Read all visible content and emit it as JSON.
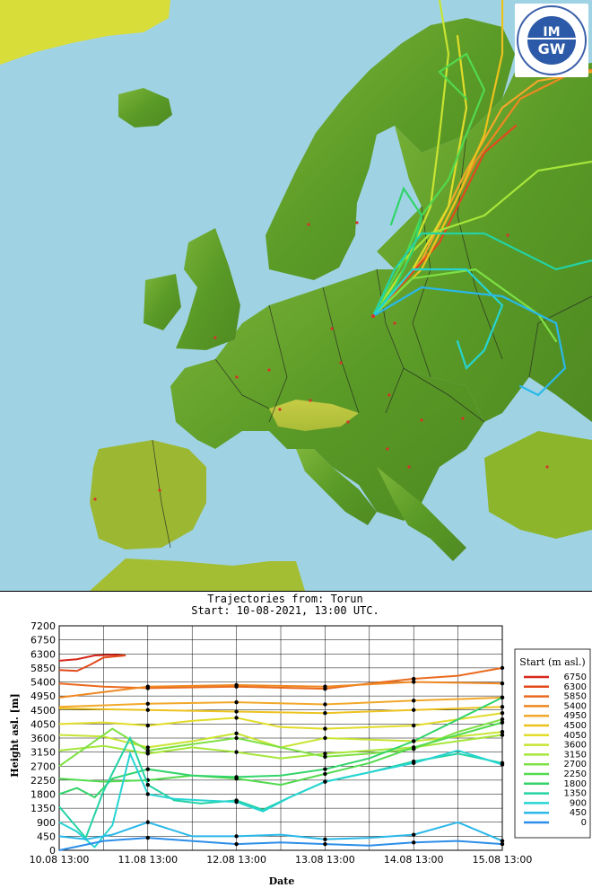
{
  "logo": {
    "text": "IMGW",
    "ring_text": "INSTYTUT METEOROLOGII I GOSPODARKI WODNEJ · PAŃSTWOWY INSTYTUT BADAWCZY"
  },
  "map": {
    "land_color": "#5f9e2a",
    "sea_color": "#9fd3e4",
    "origin_city": "Torun",
    "station_color": "#d8322a"
  },
  "chart_title_line1": "Trajectories from: Torun",
  "chart_title_line2": "Start: 10-08-2021, 13:00 UTC.",
  "chart_data": {
    "type": "line",
    "xlabel": "Date",
    "ylabel": "Height asl. [m]",
    "ylim": [
      0,
      7200
    ],
    "y_ticks": [
      "0",
      "450",
      "900",
      "1350",
      "1800",
      "2250",
      "2700",
      "3150",
      "3600",
      "4050",
      "4500",
      "4950",
      "5400",
      "5850",
      "6300",
      "6750",
      "7200"
    ],
    "x_ticks": [
      "10.08 13:00",
      "11.08 13:00",
      "12.08 13:00",
      "13.08 13:00",
      "14.08 13:00",
      "15.08 13:00"
    ],
    "legend_title": "Start (m asl.)",
    "legend": [
      {
        "label": "6750",
        "color": "#d7261b"
      },
      {
        "label": "6300",
        "color": "#e24a1c"
      },
      {
        "label": "5850",
        "color": "#ea6a1e"
      },
      {
        "label": "5400",
        "color": "#ee8822"
      },
      {
        "label": "4950",
        "color": "#f1a82a"
      },
      {
        "label": "4500",
        "color": "#ecc21f"
      },
      {
        "label": "4050",
        "color": "#e2dc2a"
      },
      {
        "label": "3600",
        "color": "#c8e432"
      },
      {
        "label": "3150",
        "color": "#a6e63a"
      },
      {
        "label": "2700",
        "color": "#7ee044"
      },
      {
        "label": "2250",
        "color": "#52da4e"
      },
      {
        "label": "1800",
        "color": "#32d46a"
      },
      {
        "label": "1350",
        "color": "#24d2a4"
      },
      {
        "label": "900",
        "color": "#26d4d2"
      },
      {
        "label": "450",
        "color": "#2ab8e8"
      },
      {
        "label": "0",
        "color": "#2b8ee8"
      }
    ],
    "series": [
      {
        "start": 6750,
        "x": [
          0,
          0.2,
          0.4,
          0.6,
          0.75
        ],
        "y": [
          6080,
          6130,
          6250,
          6270,
          6250
        ]
      },
      {
        "start": 6300,
        "x": [
          0,
          0.2,
          0.35,
          0.5,
          0.75
        ],
        "y": [
          5780,
          5750,
          5950,
          6180,
          6250
        ]
      },
      {
        "start": 5850,
        "x": [
          0,
          0.5,
          1,
          2,
          3,
          3.5,
          4,
          4.5,
          5
        ],
        "y": [
          5350,
          5250,
          5200,
          5250,
          5180,
          5350,
          5500,
          5600,
          5850
        ]
      },
      {
        "start": 5400,
        "x": [
          0,
          1,
          2,
          3,
          4,
          5
        ],
        "y": [
          4900,
          5250,
          5300,
          5250,
          5400,
          5350
        ]
      },
      {
        "start": 4950,
        "x": [
          0,
          1,
          2,
          3,
          4,
          5
        ],
        "y": [
          4600,
          4700,
          4750,
          4680,
          4800,
          4900
        ]
      },
      {
        "start": 4500,
        "x": [
          0,
          1,
          2,
          3,
          4,
          5
        ],
        "y": [
          4550,
          4500,
          4450,
          4400,
          4500,
          4600
        ]
      },
      {
        "start": 4050,
        "x": [
          0,
          0.5,
          1,
          1.5,
          2,
          2.5,
          3,
          4,
          5
        ],
        "y": [
          4050,
          4100,
          4000,
          4150,
          4250,
          3950,
          3900,
          4000,
          4400
        ]
      },
      {
        "start": 3600,
        "x": [
          0,
          0.5,
          1,
          1.5,
          2,
          2.5,
          3,
          4,
          5
        ],
        "y": [
          3700,
          3650,
          3300,
          3500,
          3750,
          3300,
          3600,
          3500,
          3800
        ]
      },
      {
        "start": 3150,
        "x": [
          0,
          0.5,
          1,
          1.5,
          2,
          2.5,
          3,
          4,
          5
        ],
        "y": [
          3200,
          3350,
          3100,
          3300,
          3150,
          2950,
          3100,
          3300,
          3700
        ]
      },
      {
        "start": 2700,
        "x": [
          0,
          0.3,
          0.6,
          1,
          1.5,
          2,
          2.5,
          3,
          3.5,
          4,
          4.5,
          5
        ],
        "y": [
          2700,
          3300,
          3900,
          3200,
          3400,
          3600,
          3300,
          3000,
          3100,
          3250,
          3800,
          4200
        ]
      },
      {
        "start": 2250,
        "x": [
          0,
          0.5,
          1,
          1.5,
          2,
          2.5,
          3,
          3.5,
          4,
          4.5,
          5
        ],
        "y": [
          2300,
          2200,
          2250,
          2400,
          2300,
          2100,
          2450,
          2800,
          3300,
          3700,
          4100
        ]
      },
      {
        "start": 1800,
        "x": [
          0,
          0.2,
          0.4,
          0.6,
          1,
          1.5,
          2,
          2.5,
          3,
          3.5,
          4,
          4.5,
          5
        ],
        "y": [
          1800,
          2000,
          1700,
          2300,
          2600,
          2400,
          2350,
          2400,
          2600,
          2950,
          3500,
          4200,
          4900
        ]
      },
      {
        "start": 1350,
        "x": [
          0,
          0.3,
          0.5,
          0.8,
          1,
          1.3,
          1.6,
          2,
          2.3,
          2.6,
          3,
          3.5,
          4,
          4.5,
          5
        ],
        "y": [
          1400,
          400,
          1900,
          3600,
          2100,
          1600,
          1500,
          1600,
          1300,
          1700,
          2200,
          2500,
          2850,
          3100,
          2800
        ]
      },
      {
        "start": 900,
        "x": [
          0,
          0.2,
          0.4,
          0.6,
          0.8,
          1,
          1.3,
          1.6,
          2,
          2.3,
          2.6,
          3,
          3.5,
          4,
          4.5,
          5
        ],
        "y": [
          900,
          600,
          100,
          800,
          3100,
          1800,
          1650,
          1600,
          1550,
          1250,
          1700,
          2200,
          2500,
          2800,
          3200,
          2750
        ]
      },
      {
        "start": 450,
        "x": [
          0,
          0.3,
          0.6,
          1,
          1.5,
          2,
          2.5,
          3,
          3.5,
          4,
          4.5,
          5
        ],
        "y": [
          450,
          350,
          500,
          900,
          450,
          450,
          500,
          350,
          400,
          500,
          900,
          300
        ]
      },
      {
        "start": 0,
        "x": [
          0,
          0.5,
          1,
          1.5,
          2,
          2.5,
          3,
          3.5,
          4,
          4.5,
          5
        ],
        "y": [
          0,
          300,
          400,
          300,
          200,
          250,
          200,
          150,
          250,
          300,
          200
        ]
      }
    ]
  }
}
